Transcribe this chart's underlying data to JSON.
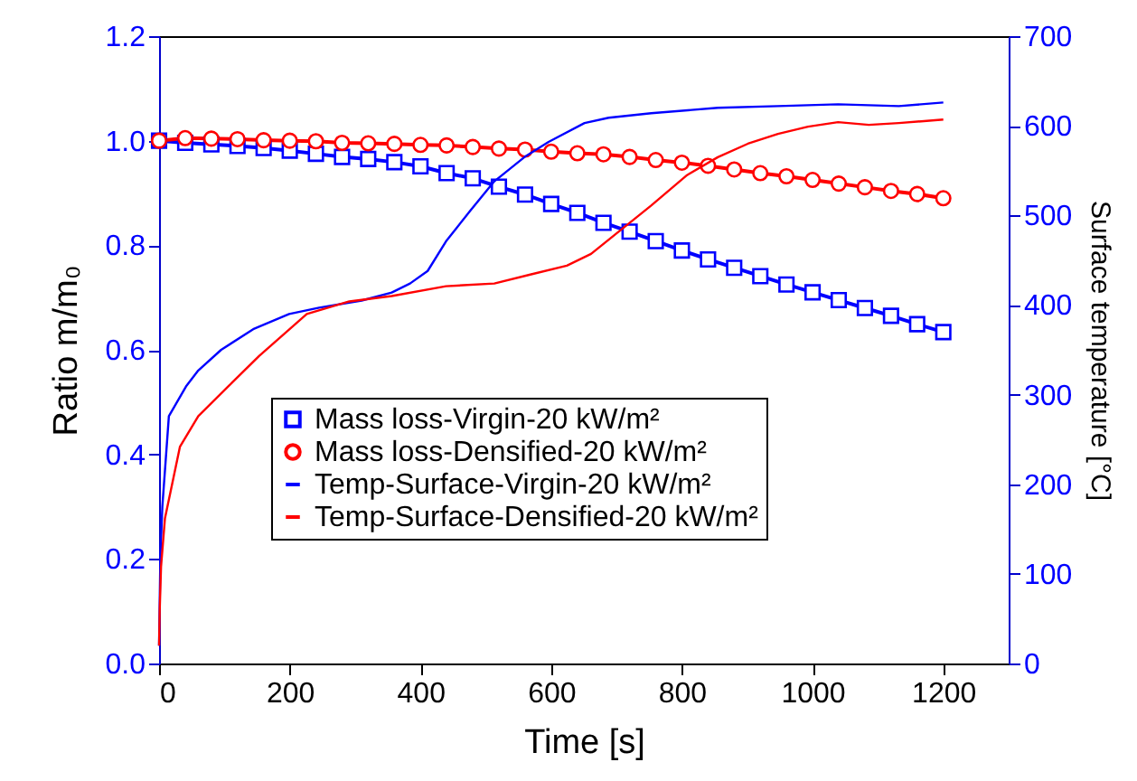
{
  "chart_data": {
    "type": "line",
    "xlabel": "Time [s]",
    "ylabel": "Ratio m/m₀",
    "y2label": "Surface temperature [°C]",
    "x": [
      0,
      40,
      80,
      120,
      160,
      200,
      240,
      280,
      320,
      360,
      400,
      440,
      480,
      520,
      560,
      600,
      640,
      680,
      720,
      760,
      800,
      840,
      880,
      920,
      960,
      1000,
      1040,
      1080,
      1120,
      1160,
      1200
    ],
    "xlim": [
      0,
      1300
    ],
    "xticks": [
      0,
      200,
      400,
      600,
      800,
      1000,
      1200
    ],
    "ylim": [
      0,
      1.2
    ],
    "yticks": [
      {
        "value": 0,
        "label": "0.0"
      },
      0.2,
      0.4,
      0.6,
      0.8,
      {
        "value": 1,
        "label": "1.0"
      },
      1.2
    ],
    "y2lim": [
      0,
      700
    ],
    "y2ticks": [
      0,
      100,
      200,
      300,
      400,
      500,
      600,
      700
    ],
    "legend": "bottom",
    "grid": false,
    "series": [
      {
        "name": "Mass loss-Virgin-20 kW/m²",
        "color": "#0000ff",
        "marker": "square",
        "axis": "y",
        "values": [
          1.0,
          0.996,
          0.993,
          0.99,
          0.986,
          0.981,
          0.975,
          0.969,
          0.965,
          0.959,
          0.951,
          0.938,
          0.928,
          0.912,
          0.897,
          0.879,
          0.862,
          0.843,
          0.826,
          0.808,
          0.79,
          0.773,
          0.757,
          0.741,
          0.725,
          0.71,
          0.695,
          0.68,
          0.665,
          0.649,
          0.634
        ]
      },
      {
        "name": "Mass loss-Densified-20 kW/m²",
        "color": "#ff0000",
        "marker": "circle",
        "axis": "y",
        "values": [
          1.0,
          1.005,
          1.004,
          1.003,
          1.001,
          1.0,
          0.999,
          0.996,
          0.995,
          0.994,
          0.992,
          0.991,
          0.988,
          0.985,
          0.983,
          0.979,
          0.976,
          0.974,
          0.969,
          0.963,
          0.958,
          0.952,
          0.945,
          0.938,
          0.932,
          0.925,
          0.918,
          0.911,
          0.904,
          0.898,
          0.89
        ]
      },
      {
        "name": "Temp-Surface-Virgin-20 kW/m²",
        "color": "#0000ff",
        "marker": "none",
        "axis": "y2",
        "x": [
          0,
          2,
          5,
          15,
          42,
          60,
          95,
          144,
          199,
          245,
          310,
          356,
          384,
          411,
          439,
          476,
          513,
          559,
          596,
          651,
          688,
          753,
          855,
          947,
          1039,
          1132,
          1200
        ],
        "values": [
          20,
          120,
          175,
          276,
          310,
          327,
          350,
          373,
          390,
          397,
          405,
          414,
          424,
          438,
          471,
          505,
          538,
          565,
          582,
          603,
          609,
          614,
          620,
          622,
          624,
          622,
          626
        ]
      },
      {
        "name": "Temp-Surface-Densified-20 kW/m²",
        "color": "#ff0000",
        "marker": "none",
        "axis": "y2",
        "x": [
          0,
          1,
          3,
          9,
          32,
          60,
          107,
          153,
          226,
          291,
          356,
          439,
          513,
          568,
          624,
          661,
          707,
          753,
          808,
          855,
          901,
          947,
          993,
          1039,
          1086,
          1132,
          1200
        ],
        "values": [
          20,
          60,
          108,
          162,
          242,
          276,
          310,
          343,
          390,
          404,
          410,
          421,
          424,
          434,
          444,
          457,
          484,
          511,
          545,
          565,
          580,
          591,
          599,
          604,
          601,
          603,
          607
        ]
      }
    ]
  }
}
